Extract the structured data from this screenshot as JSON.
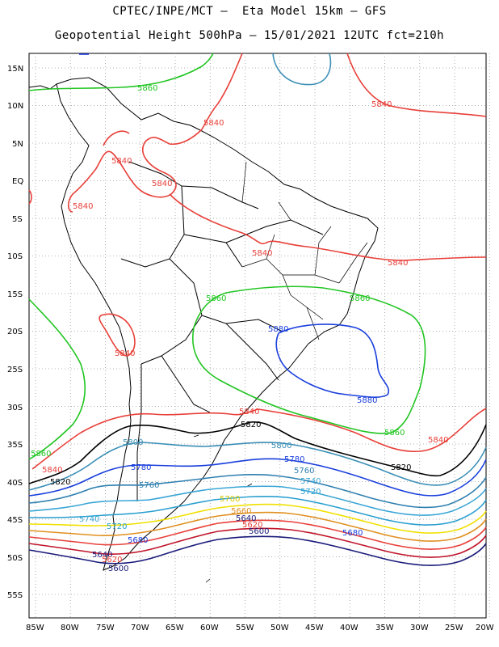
{
  "header": {
    "title_line1": "CPTEC/INPE/MCT –  Eta Model 15km – GFS",
    "title_line2": "Geopotential Height 500hPa – 15/01/2021 12UTC fct=210h"
  },
  "axes": {
    "lat_labels": [
      "15N",
      "10N",
      "5N",
      "EQ",
      "5S",
      "10S",
      "15S",
      "20S",
      "25S",
      "30S",
      "35S",
      "40S",
      "45S",
      "50S",
      "55S"
    ],
    "lon_labels": [
      "85W",
      "80W",
      "75W",
      "70W",
      "65W",
      "60W",
      "55W",
      "50W",
      "45W",
      "40W",
      "35W",
      "30W",
      "25W",
      "20W"
    ]
  },
  "contours": {
    "colors": {
      "5880": "#1a3fdc",
      "5860": "#22c522",
      "5840": "#e8403a",
      "5820": "#000000",
      "5800": "#3b8fb6",
      "5780": "#1a3fdc",
      "5760": "#2e7fb0",
      "5740": "#3aa6d6",
      "5720": "#2a9fd0",
      "5700": "#f0e000",
      "5660": "#e09020",
      "5640": "#e8403a",
      "5620": "#c0142a",
      "5600": "#1a1a7a"
    },
    "labels": [
      {
        "text": "5860",
        "color": "#22c522"
      },
      {
        "text": "5840",
        "color": "#e8403a"
      },
      {
        "text": "5840",
        "color": "#e8403a"
      },
      {
        "text": "5840",
        "color": "#e8403a"
      },
      {
        "text": "5840",
        "color": "#e8403a"
      },
      {
        "text": "5840",
        "color": "#e8403a"
      },
      {
        "text": "5840",
        "color": "#e8403a"
      },
      {
        "text": "5840",
        "color": "#e8403a"
      },
      {
        "text": "5860",
        "color": "#22c522"
      },
      {
        "text": "5860",
        "color": "#22c522"
      },
      {
        "text": "5880",
        "color": "#1a3fdc"
      },
      {
        "text": "5840",
        "color": "#e8403a"
      },
      {
        "text": "5880",
        "color": "#1a3fdc"
      },
      {
        "text": "5840",
        "color": "#e8403a"
      },
      {
        "text": "5820",
        "color": "#000000"
      },
      {
        "text": "5860",
        "color": "#22c522"
      },
      {
        "text": "5840",
        "color": "#e8403a"
      },
      {
        "text": "5800",
        "color": "#3b8fb6"
      },
      {
        "text": "5800",
        "color": "#3b8fb6"
      },
      {
        "text": "5860",
        "color": "#22c522"
      },
      {
        "text": "5840",
        "color": "#e8403a"
      },
      {
        "text": "5780",
        "color": "#1a3fdc"
      },
      {
        "text": "5780",
        "color": "#1a3fdc"
      },
      {
        "text": "5820",
        "color": "#000000"
      },
      {
        "text": "5760",
        "color": "#2e7fb0"
      },
      {
        "text": "5820",
        "color": "#000000"
      },
      {
        "text": "5760",
        "color": "#2e7fb0"
      },
      {
        "text": "5740",
        "color": "#3aa6d6"
      },
      {
        "text": "5720",
        "color": "#2a9fd0"
      },
      {
        "text": "5700",
        "color": "#d8c800"
      },
      {
        "text": "5660",
        "color": "#e09020"
      },
      {
        "text": "5640",
        "color": "#1a1a7a"
      },
      {
        "text": "5620",
        "color": "#e8403a"
      },
      {
        "text": "5600",
        "color": "#1a1a7a"
      },
      {
        "text": "5740",
        "color": "#3aa6d6"
      },
      {
        "text": "5720",
        "color": "#2a9fd0"
      },
      {
        "text": "5680",
        "color": "#1a3fdc"
      },
      {
        "text": "5680",
        "color": "#1a3fdc"
      },
      {
        "text": "5640",
        "color": "#1a1a7a"
      },
      {
        "text": "5620",
        "color": "#e8403a"
      },
      {
        "text": "5600",
        "color": "#1a1a7a"
      }
    ]
  }
}
